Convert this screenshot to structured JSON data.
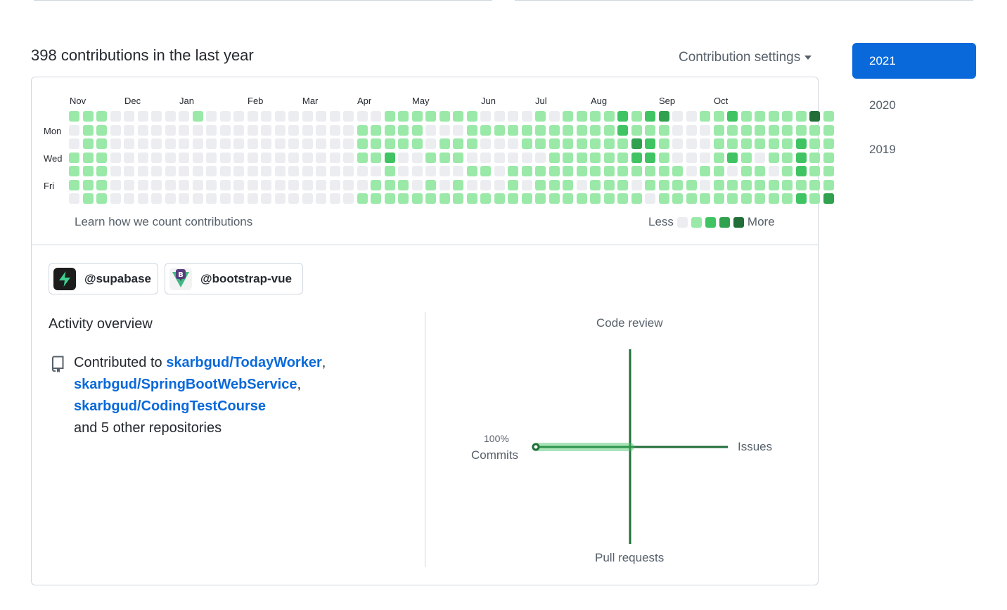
{
  "header": {
    "title": "398 contributions in the last year",
    "settings_label": "Contribution settings"
  },
  "year_nav": [
    "2021",
    "2020",
    "2019"
  ],
  "calendar": {
    "months": [
      "Nov",
      "Dec",
      "Jan",
      "Feb",
      "Mar",
      "Apr",
      "May",
      "Jun",
      "Jul",
      "Aug",
      "Sep",
      "Oct"
    ],
    "days": [
      "Mon",
      "Wed",
      "Fri"
    ],
    "levels": [
      "1001110",
      "1111111",
      "1111111",
      "0000000",
      "0000000",
      "0000000",
      "0000000",
      "0000000",
      "0000000",
      "1000000",
      "0000000",
      "0000000",
      "0000000",
      "0000000",
      "0000000",
      "0000000",
      "0000000",
      "0000000",
      "0000000",
      "0000000",
      "0000000",
      "0111001",
      "0111011",
      "1112111",
      "1110011",
      "1110001",
      "1001011",
      "1011001",
      "1011011",
      "1110101",
      "0100101",
      "0100001",
      "0100111",
      "0110101",
      "1110111",
      "0111111",
      "1111111",
      "1111101",
      "1111111",
      "1111111",
      "2211111",
      "1132101",
      "2122110",
      "3111111",
      "0000111",
      "0000011",
      "1000101",
      "1111111",
      "2112011",
      "1111111",
      "1110111",
      "1111011",
      "1111111",
      "1122212",
      "4111111",
      "1111113"
    ],
    "learn_text": "Learn how we count contributions",
    "legend_less": "Less",
    "legend_more": "More",
    "colors": [
      "#ebedf0",
      "#9be9a8",
      "#40c463",
      "#30a14e",
      "#216e39"
    ]
  },
  "orgs": [
    {
      "name": "@supabase",
      "icon": "supabase-logo"
    },
    {
      "name": "@bootstrap-vue",
      "icon": "bootstrap-vue-logo"
    }
  ],
  "activity": {
    "title": "Activity overview",
    "contributed_prefix": "Contributed to",
    "repos": [
      "skarbgud/TodayWorker",
      "skarbgud/SpringBootWebService",
      "skarbgud/CodingTestCourse"
    ],
    "other": "and 5 other repositories"
  },
  "overview_chart": {
    "axes": [
      "Code review",
      "Issues",
      "Pull requests",
      "Commits"
    ],
    "commits_percent": "100%",
    "values": {
      "commits": 100,
      "issues": 0,
      "code_review": 0,
      "pull_requests": 0
    },
    "color": "#216e39"
  }
}
